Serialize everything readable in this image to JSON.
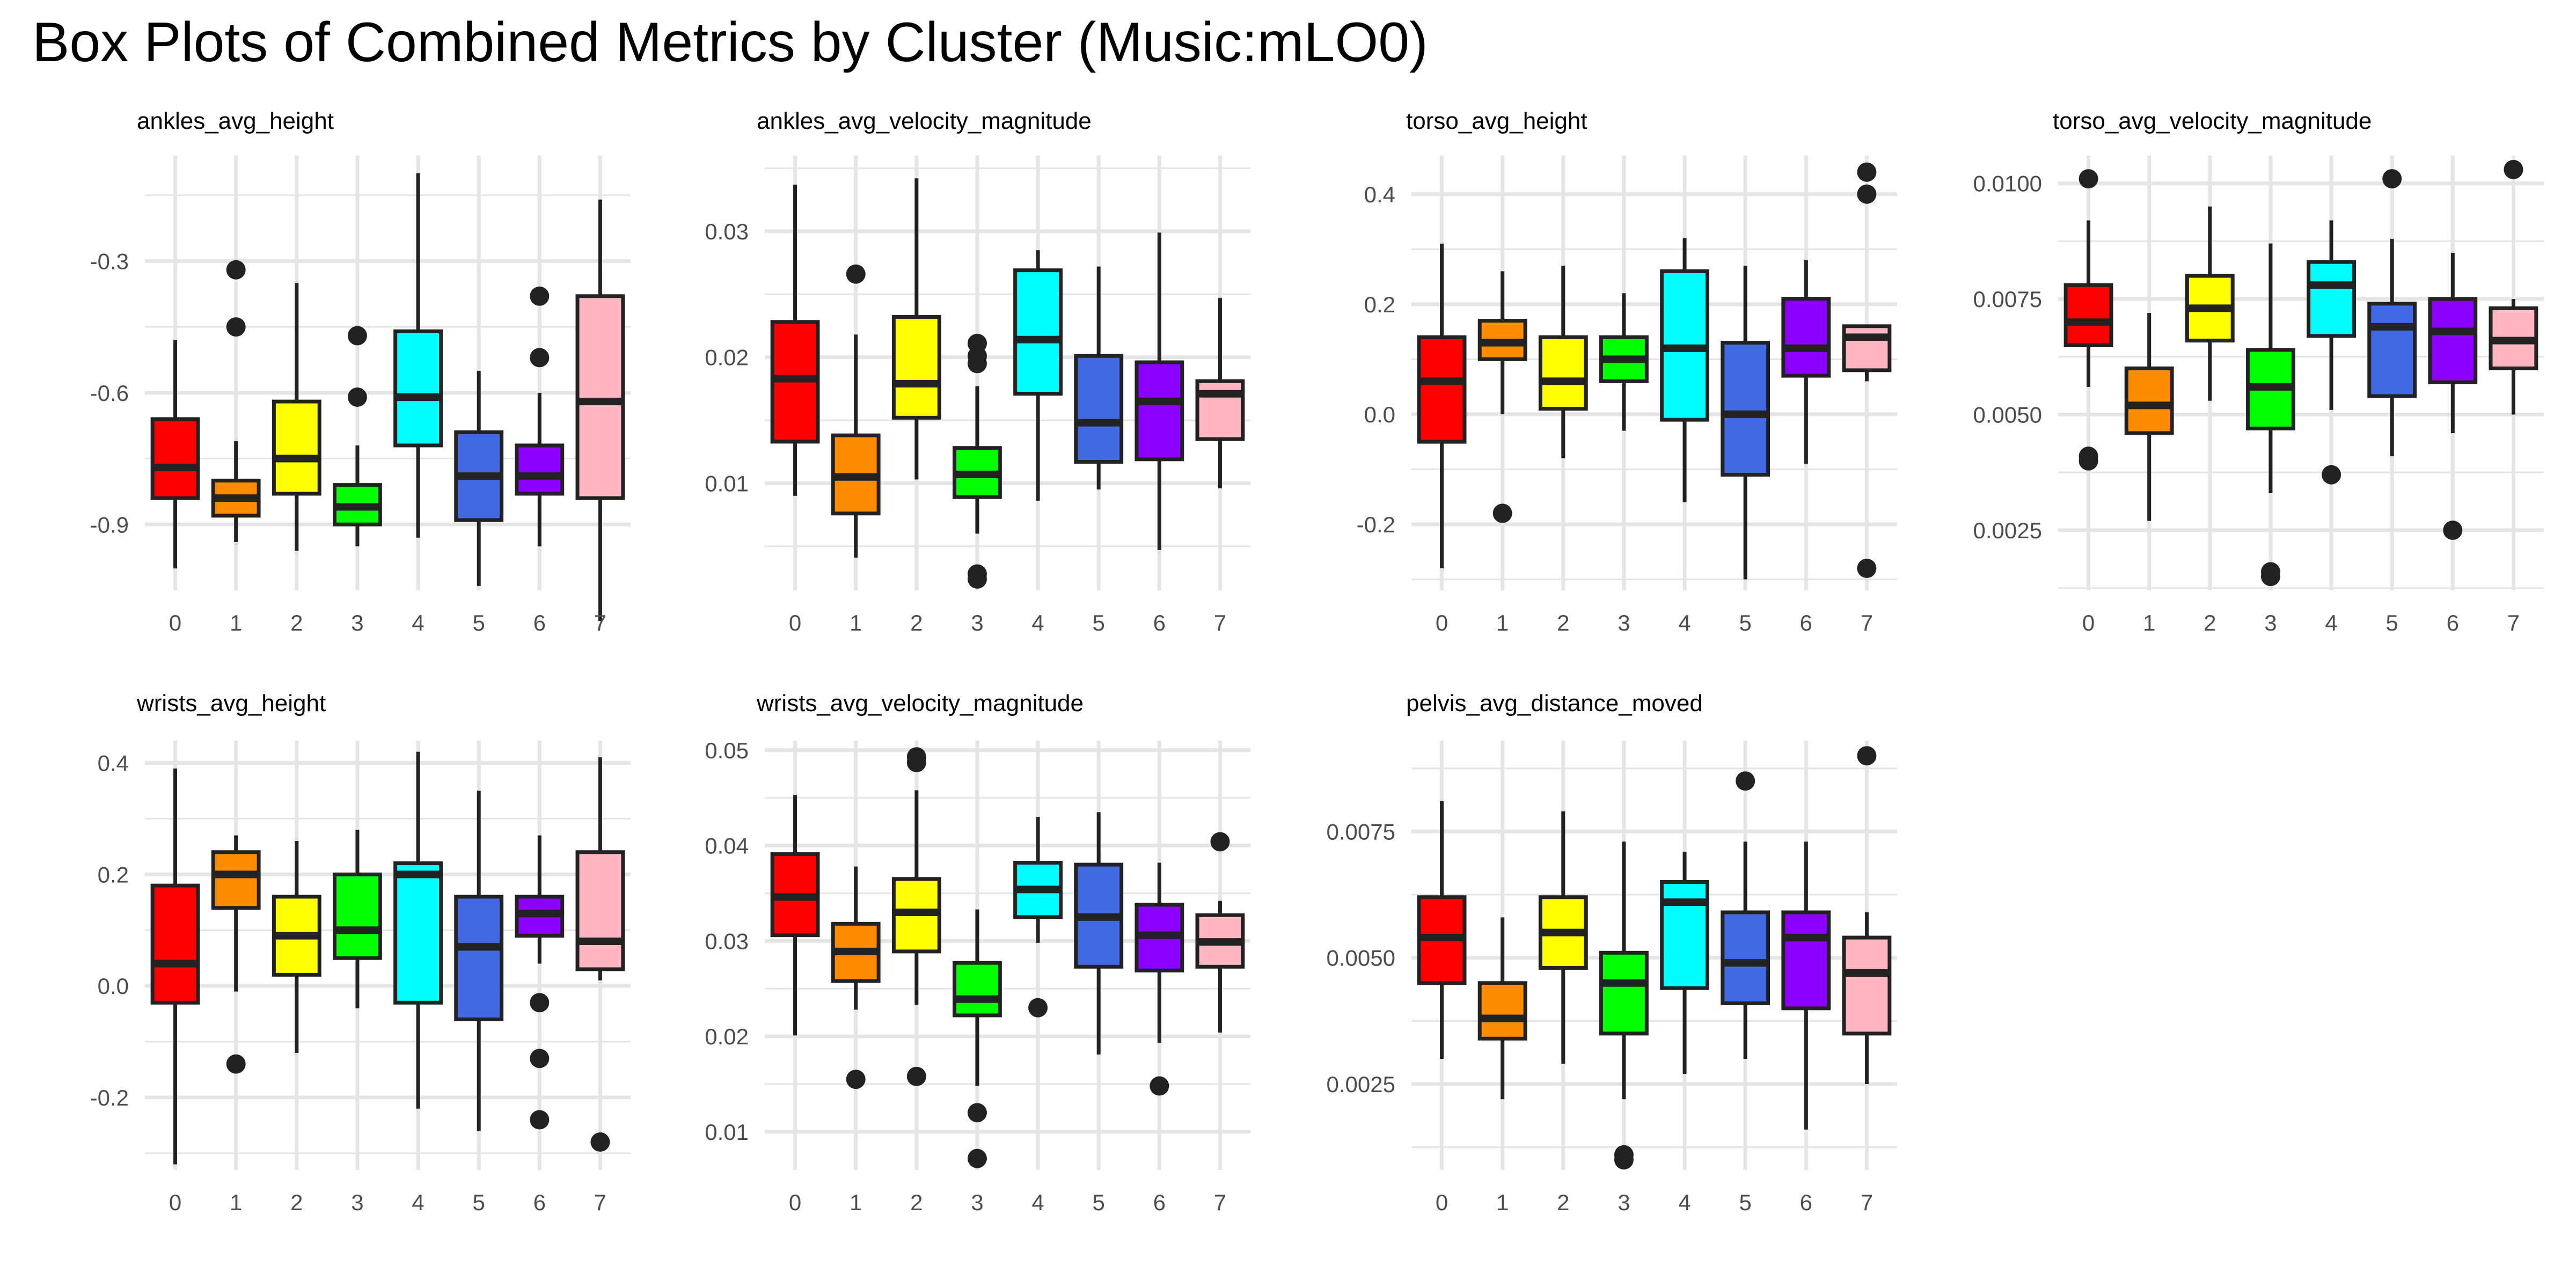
{
  "title": "Box Plots of Combined Metrics by Cluster (Music:mLO0)",
  "colors": {
    "clusters": [
      "#FF0000",
      "#FF8C00",
      "#FFFF00",
      "#00FF00",
      "#00FFFF",
      "#4169E1",
      "#8B00FF",
      "#FFB6C1"
    ],
    "gridline": "#E5E5E5",
    "outline": "#222222"
  },
  "chart_data": [
    {
      "type": "box",
      "title": "ankles_avg_height",
      "categories": [
        "0",
        "1",
        "2",
        "3",
        "4",
        "5",
        "6",
        "7"
      ],
      "ylim": [
        -1.05,
        -0.06
      ],
      "yticks": [
        -0.9,
        -0.6,
        -0.3
      ],
      "ytick_labels": [
        "-0.9",
        "-0.6",
        "-0.3"
      ],
      "minor_yticks": [
        -0.75,
        -0.45,
        -0.15
      ],
      "boxes": [
        {
          "min": -1.0,
          "q1": -0.84,
          "median": -0.77,
          "q3": -0.66,
          "max": -0.48,
          "outliers": []
        },
        {
          "min": -0.94,
          "q1": -0.88,
          "median": -0.84,
          "q3": -0.8,
          "max": -0.71,
          "outliers": [
            -0.32,
            -0.45
          ]
        },
        {
          "min": -0.96,
          "q1": -0.83,
          "median": -0.75,
          "q3": -0.62,
          "max": -0.35,
          "outliers": []
        },
        {
          "min": -0.95,
          "q1": -0.9,
          "median": -0.86,
          "q3": -0.81,
          "max": -0.72,
          "outliers": [
            -0.47,
            -0.61
          ]
        },
        {
          "min": -0.93,
          "q1": -0.72,
          "median": -0.61,
          "q3": -0.46,
          "max": -0.1,
          "outliers": []
        },
        {
          "min": -1.04,
          "q1": -0.89,
          "median": -0.79,
          "q3": -0.69,
          "max": -0.55,
          "outliers": []
        },
        {
          "min": -0.95,
          "q1": -0.83,
          "median": -0.79,
          "q3": -0.72,
          "max": -0.6,
          "outliers": [
            -0.38,
            -0.52
          ]
        },
        {
          "min": -1.12,
          "q1": -0.84,
          "median": -0.62,
          "q3": -0.38,
          "max": -0.16,
          "outliers": []
        }
      ]
    },
    {
      "type": "box",
      "title": "ankles_avg_velocity_magnitude",
      "categories": [
        "0",
        "1",
        "2",
        "3",
        "4",
        "5",
        "6",
        "7"
      ],
      "ylim": [
        0.0015,
        0.036
      ],
      "yticks": [
        0.01,
        0.02,
        0.03
      ],
      "ytick_labels": [
        "0.01",
        "0.02",
        "0.03"
      ],
      "minor_yticks": [
        0.005,
        0.015,
        0.025,
        0.035
      ],
      "boxes": [
        {
          "min": 0.009,
          "q1": 0.0133,
          "median": 0.0183,
          "q3": 0.0228,
          "max": 0.0337,
          "outliers": []
        },
        {
          "min": 0.0041,
          "q1": 0.0076,
          "median": 0.0105,
          "q3": 0.0138,
          "max": 0.0218,
          "outliers": [
            0.0266
          ]
        },
        {
          "min": 0.0103,
          "q1": 0.0152,
          "median": 0.0179,
          "q3": 0.0232,
          "max": 0.0342,
          "outliers": []
        },
        {
          "min": 0.006,
          "q1": 0.0089,
          "median": 0.0107,
          "q3": 0.0128,
          "max": 0.0177,
          "outliers": [
            0.0211,
            0.0201,
            0.0195,
            0.0028,
            0.0024
          ]
        },
        {
          "min": 0.0086,
          "q1": 0.0171,
          "median": 0.0214,
          "q3": 0.0269,
          "max": 0.0285,
          "outliers": []
        },
        {
          "min": 0.0095,
          "q1": 0.0117,
          "median": 0.0148,
          "q3": 0.0201,
          "max": 0.0272,
          "outliers": []
        },
        {
          "min": 0.0047,
          "q1": 0.0119,
          "median": 0.0165,
          "q3": 0.0196,
          "max": 0.0299,
          "outliers": []
        },
        {
          "min": 0.0096,
          "q1": 0.0135,
          "median": 0.0171,
          "q3": 0.0181,
          "max": 0.0247,
          "outliers": []
        }
      ]
    },
    {
      "type": "box",
      "title": "torso_avg_height",
      "categories": [
        "0",
        "1",
        "2",
        "3",
        "4",
        "5",
        "6",
        "7"
      ],
      "ylim": [
        -0.32,
        0.47
      ],
      "yticks": [
        -0.2,
        0.0,
        0.2,
        0.4
      ],
      "ytick_labels": [
        "-0.2",
        "0.0",
        "0.2",
        "0.4"
      ],
      "minor_yticks": [
        -0.3,
        -0.1,
        0.1,
        0.3
      ],
      "boxes": [
        {
          "min": -0.28,
          "q1": -0.05,
          "median": 0.06,
          "q3": 0.14,
          "max": 0.31,
          "outliers": []
        },
        {
          "min": 0.0,
          "q1": 0.1,
          "median": 0.13,
          "q3": 0.17,
          "max": 0.26,
          "outliers": [
            -0.18
          ]
        },
        {
          "min": -0.08,
          "q1": 0.01,
          "median": 0.06,
          "q3": 0.14,
          "max": 0.27,
          "outliers": []
        },
        {
          "min": -0.03,
          "q1": 0.06,
          "median": 0.1,
          "q3": 0.14,
          "max": 0.22,
          "outliers": []
        },
        {
          "min": -0.16,
          "q1": -0.01,
          "median": 0.12,
          "q3": 0.26,
          "max": 0.32,
          "outliers": []
        },
        {
          "min": -0.3,
          "q1": -0.11,
          "median": 0.0,
          "q3": 0.13,
          "max": 0.27,
          "outliers": []
        },
        {
          "min": -0.09,
          "q1": 0.07,
          "median": 0.12,
          "q3": 0.21,
          "max": 0.28,
          "outliers": []
        },
        {
          "min": 0.06,
          "q1": 0.08,
          "median": 0.14,
          "q3": 0.16,
          "max": 0.16,
          "outliers": [
            0.44,
            0.4,
            -0.28
          ]
        }
      ]
    },
    {
      "type": "box",
      "title": "torso_avg_velocity_magnitude",
      "categories": [
        "0",
        "1",
        "2",
        "3",
        "4",
        "5",
        "6",
        "7"
      ],
      "ylim": [
        0.0012,
        0.0106
      ],
      "yticks": [
        0.0025,
        0.005,
        0.0075,
        0.01
      ],
      "ytick_labels": [
        "0.0025",
        "0.0050",
        "0.0075",
        "0.0100"
      ],
      "minor_yticks": [
        0.00125,
        0.00375,
        0.00625,
        0.00875
      ],
      "boxes": [
        {
          "min": 0.0056,
          "q1": 0.0065,
          "median": 0.007,
          "q3": 0.0078,
          "max": 0.0092,
          "outliers": [
            0.0101,
            0.0041,
            0.004
          ]
        },
        {
          "min": 0.0027,
          "q1": 0.0046,
          "median": 0.0052,
          "q3": 0.006,
          "max": 0.0072,
          "outliers": []
        },
        {
          "min": 0.0053,
          "q1": 0.0066,
          "median": 0.0073,
          "q3": 0.008,
          "max": 0.0095,
          "outliers": []
        },
        {
          "min": 0.0033,
          "q1": 0.0047,
          "median": 0.0056,
          "q3": 0.0064,
          "max": 0.0087,
          "outliers": [
            0.0016,
            0.0015
          ]
        },
        {
          "min": 0.0051,
          "q1": 0.0067,
          "median": 0.0078,
          "q3": 0.0083,
          "max": 0.0092,
          "outliers": [
            0.0037
          ]
        },
        {
          "min": 0.0041,
          "q1": 0.0054,
          "median": 0.0069,
          "q3": 0.0074,
          "max": 0.0088,
          "outliers": [
            0.0101
          ]
        },
        {
          "min": 0.0046,
          "q1": 0.0057,
          "median": 0.0068,
          "q3": 0.0075,
          "max": 0.0085,
          "outliers": [
            0.0025
          ]
        },
        {
          "min": 0.005,
          "q1": 0.006,
          "median": 0.0066,
          "q3": 0.0073,
          "max": 0.0075,
          "outliers": [
            0.0103
          ]
        }
      ]
    },
    {
      "type": "box",
      "title": "wrists_avg_height",
      "categories": [
        "0",
        "1",
        "2",
        "3",
        "4",
        "5",
        "6",
        "7"
      ],
      "ylim": [
        -0.33,
        0.44
      ],
      "yticks": [
        -0.2,
        0.0,
        0.2,
        0.4
      ],
      "ytick_labels": [
        "-0.2",
        "0.0",
        "0.2",
        "0.4"
      ],
      "minor_yticks": [
        -0.3,
        -0.1,
        0.1,
        0.3
      ],
      "boxes": [
        {
          "min": -0.32,
          "q1": -0.03,
          "median": 0.04,
          "q3": 0.18,
          "max": 0.39,
          "outliers": []
        },
        {
          "min": -0.01,
          "q1": 0.14,
          "median": 0.2,
          "q3": 0.24,
          "max": 0.27,
          "outliers": [
            -0.14
          ]
        },
        {
          "min": -0.12,
          "q1": 0.02,
          "median": 0.09,
          "q3": 0.16,
          "max": 0.26,
          "outliers": []
        },
        {
          "min": -0.04,
          "q1": 0.05,
          "median": 0.1,
          "q3": 0.2,
          "max": 0.28,
          "outliers": []
        },
        {
          "min": -0.22,
          "q1": -0.03,
          "median": 0.2,
          "q3": 0.22,
          "max": 0.42,
          "outliers": []
        },
        {
          "min": -0.26,
          "q1": -0.06,
          "median": 0.07,
          "q3": 0.16,
          "max": 0.35,
          "outliers": []
        },
        {
          "min": 0.04,
          "q1": 0.09,
          "median": 0.13,
          "q3": 0.16,
          "max": 0.27,
          "outliers": [
            -0.03,
            -0.13,
            -0.24
          ]
        },
        {
          "min": 0.01,
          "q1": 0.03,
          "median": 0.08,
          "q3": 0.24,
          "max": 0.41,
          "outliers": [
            -0.28
          ]
        }
      ]
    },
    {
      "type": "box",
      "title": "wrists_avg_velocity_magnitude",
      "categories": [
        "0",
        "1",
        "2",
        "3",
        "4",
        "5",
        "6",
        "7"
      ],
      "ylim": [
        0.006,
        0.051
      ],
      "yticks": [
        0.01,
        0.02,
        0.03,
        0.04,
        0.05
      ],
      "ytick_labels": [
        "0.01",
        "0.02",
        "0.03",
        "0.04",
        "0.05"
      ],
      "minor_yticks": [
        0.015,
        0.025,
        0.035,
        0.045
      ],
      "boxes": [
        {
          "min": 0.0201,
          "q1": 0.0306,
          "median": 0.0346,
          "q3": 0.0391,
          "max": 0.0453,
          "outliers": []
        },
        {
          "min": 0.0228,
          "q1": 0.0258,
          "median": 0.0289,
          "q3": 0.0318,
          "max": 0.0378,
          "outliers": [
            0.0155
          ]
        },
        {
          "min": 0.0233,
          "q1": 0.0289,
          "median": 0.033,
          "q3": 0.0365,
          "max": 0.0458,
          "outliers": [
            0.0493,
            0.0487,
            0.0158
          ]
        },
        {
          "min": 0.0148,
          "q1": 0.0222,
          "median": 0.0239,
          "q3": 0.0277,
          "max": 0.0333,
          "outliers": [
            0.012,
            0.0072
          ]
        },
        {
          "min": 0.0298,
          "q1": 0.0325,
          "median": 0.0354,
          "q3": 0.0382,
          "max": 0.043,
          "outliers": [
            0.023
          ]
        },
        {
          "min": 0.0181,
          "q1": 0.0273,
          "median": 0.0325,
          "q3": 0.038,
          "max": 0.0435,
          "outliers": []
        },
        {
          "min": 0.0193,
          "q1": 0.0269,
          "median": 0.0306,
          "q3": 0.0338,
          "max": 0.0382,
          "outliers": [
            0.0148
          ]
        },
        {
          "min": 0.0204,
          "q1": 0.0273,
          "median": 0.0299,
          "q3": 0.0327,
          "max": 0.0342,
          "outliers": [
            0.0404
          ]
        }
      ]
    },
    {
      "type": "box",
      "title": "pelvis_avg_distance_moved",
      "categories": [
        "0",
        "1",
        "2",
        "3",
        "4",
        "5",
        "6",
        "7"
      ],
      "ylim": [
        0.0008,
        0.0093
      ],
      "yticks": [
        0.0025,
        0.005,
        0.0075
      ],
      "ytick_labels": [
        "0.0025",
        "0.0050",
        "0.0075"
      ],
      "minor_yticks": [
        0.00125,
        0.00375,
        0.00625,
        0.00875
      ],
      "boxes": [
        {
          "min": 0.003,
          "q1": 0.0045,
          "median": 0.0054,
          "q3": 0.0062,
          "max": 0.0081,
          "outliers": []
        },
        {
          "min": 0.0022,
          "q1": 0.0034,
          "median": 0.0038,
          "q3": 0.0045,
          "max": 0.0058,
          "outliers": []
        },
        {
          "min": 0.0029,
          "q1": 0.0048,
          "median": 0.0055,
          "q3": 0.0062,
          "max": 0.0079,
          "outliers": []
        },
        {
          "min": 0.0022,
          "q1": 0.0035,
          "median": 0.0045,
          "q3": 0.0051,
          "max": 0.0073,
          "outliers": [
            0.0011,
            0.001
          ]
        },
        {
          "min": 0.0027,
          "q1": 0.0044,
          "median": 0.0061,
          "q3": 0.0065,
          "max": 0.0071,
          "outliers": []
        },
        {
          "min": 0.003,
          "q1": 0.0041,
          "median": 0.0049,
          "q3": 0.0059,
          "max": 0.0073,
          "outliers": [
            0.0085
          ]
        },
        {
          "min": 0.0016,
          "q1": 0.004,
          "median": 0.0054,
          "q3": 0.0059,
          "max": 0.0073,
          "outliers": []
        },
        {
          "min": 0.0025,
          "q1": 0.0035,
          "median": 0.0047,
          "q3": 0.0054,
          "max": 0.0059,
          "outliers": [
            0.009
          ]
        }
      ]
    }
  ]
}
